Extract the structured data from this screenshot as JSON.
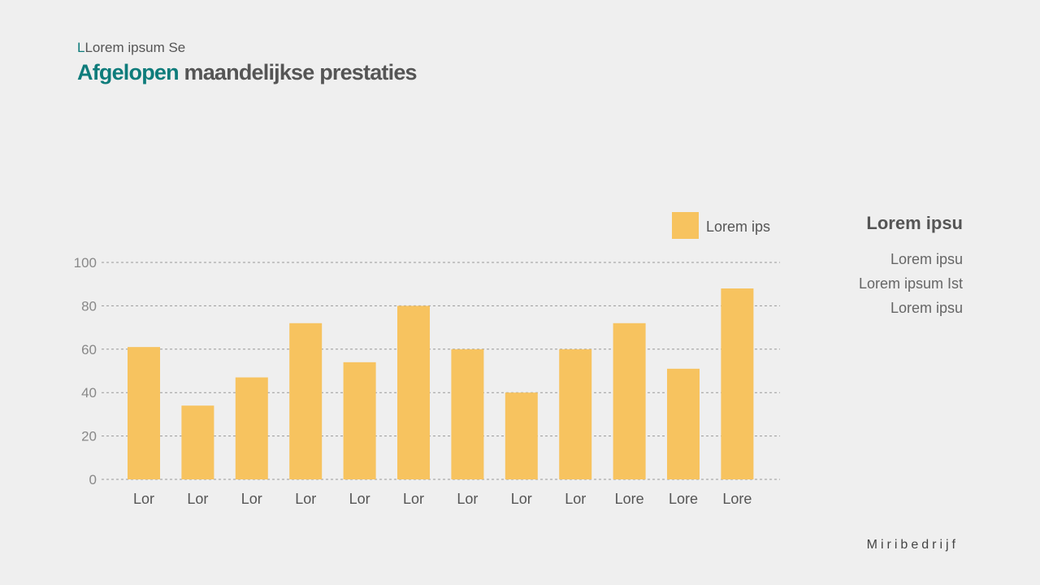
{
  "header": {
    "subtitle_accent": "L",
    "subtitle_rest": "Lorem ipsum Se",
    "title_accent": "Afgelopen",
    "title_rest": " maandelijkse prestaties"
  },
  "side": {
    "title": "Lorem ipsu",
    "items": [
      "Lorem ipsu",
      "Lorem ipsum Ist",
      "Lorem ipsu"
    ]
  },
  "brand": "Miribedrijf",
  "colors": {
    "accent": "#0e7c7b",
    "bar": "#f7c35f",
    "text": "#555555",
    "grid": "#9a9a9a",
    "tick": "#888888"
  },
  "chart_data": {
    "type": "bar",
    "title": "",
    "xlabel": "",
    "ylabel": "",
    "ylim": [
      0,
      100
    ],
    "yticks": [
      0,
      20,
      40,
      60,
      80,
      100
    ],
    "grid": true,
    "legend_position": "top-right",
    "categories": [
      "Lor",
      "Lor",
      "Lor",
      "Lor",
      "Lor",
      "Lor",
      "Lor",
      "Lor",
      "Lor",
      "Lore",
      "Lore",
      "Lore"
    ],
    "series": [
      {
        "name": "Lorem ips",
        "values": [
          61,
          34,
          47,
          72,
          54,
          80,
          60,
          40,
          60,
          72,
          51,
          88
        ]
      }
    ]
  }
}
